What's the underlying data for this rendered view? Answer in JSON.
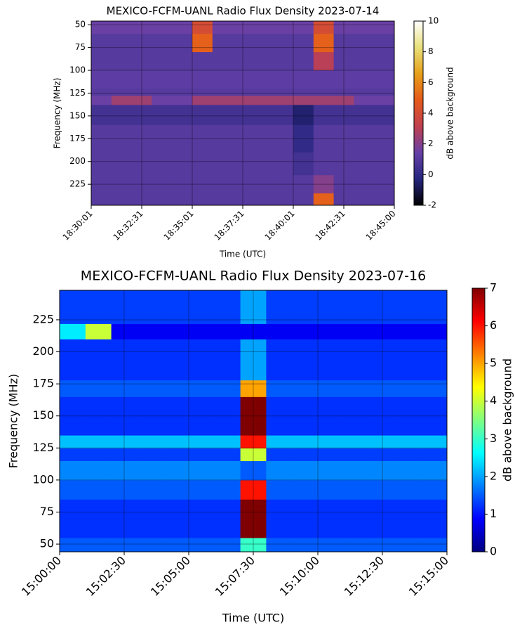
{
  "chart_data": [
    {
      "type": "spectrogram",
      "title": "MEXICO-FCFM-UANL Radio Flux Density 2023-07-14",
      "x_label": "Time (UTC)",
      "y_label": "Frequency (MHz)",
      "colorbar_label": "dB above background",
      "xticks": [
        "18:30:01",
        "18:32:31",
        "18:35:01",
        "18:37:31",
        "18:40:01",
        "18:42:31",
        "18:45:00"
      ],
      "ylim": [
        46,
        248
      ],
      "y_inverted": true,
      "yticks": [
        50,
        75,
        100,
        125,
        150,
        175,
        200,
        225
      ],
      "clim": [
        -2,
        10
      ],
      "cticks": [
        -2,
        0,
        2,
        4,
        6,
        8,
        10
      ],
      "grid": true,
      "colormap": [
        "#000000",
        "#26267f",
        "#6640a8",
        "#c0404f",
        "#e55a1a",
        "#e6a01a",
        "#e8df7a",
        "#ffffff"
      ],
      "y_bins": [
        46,
        60,
        80,
        100,
        120,
        128,
        138,
        160,
        190,
        215,
        235,
        248
      ],
      "z": [
        [
          1.5,
          1.5,
          1.5,
          1.5,
          1.5,
          4,
          1.5,
          1.5,
          1.5,
          1.5,
          1.5,
          4,
          1.5,
          1.5,
          1.5
        ],
        [
          1,
          1,
          1,
          1,
          1,
          5,
          1,
          1,
          1,
          1,
          1,
          5,
          1,
          1,
          1
        ],
        [
          1,
          1,
          1,
          1,
          1,
          1,
          1,
          1,
          1,
          1,
          1,
          3,
          1,
          1,
          1
        ],
        [
          1.2,
          1.2,
          1.2,
          1.2,
          1.2,
          1.2,
          1.2,
          1.2,
          1.2,
          1.2,
          1.2,
          1.2,
          1.2,
          1.2,
          1.2
        ],
        [
          1,
          1,
          1,
          1,
          1,
          1,
          1,
          1,
          1,
          1,
          1,
          1,
          1,
          1,
          1
        ],
        [
          1.5,
          2.5,
          2.5,
          1.5,
          1.5,
          2.5,
          2.5,
          2.5,
          2.5,
          2.5,
          2.5,
          2.5,
          2.5,
          1.5,
          1.5
        ],
        [
          0.5,
          0.5,
          0.5,
          0.5,
          0.5,
          0.5,
          0.5,
          0.5,
          0.5,
          0.5,
          -0.5,
          0.5,
          0.5,
          0.5,
          0.5
        ],
        [
          1,
          1,
          1,
          1,
          1,
          1,
          1,
          1,
          1,
          1,
          0,
          1,
          1,
          1,
          1
        ],
        [
          1,
          1,
          1,
          1,
          1,
          1,
          1,
          1,
          1,
          1,
          0.5,
          1,
          1,
          1,
          1
        ],
        [
          1,
          1,
          1,
          1,
          1,
          1,
          1,
          1,
          1,
          1,
          1,
          2,
          1,
          1,
          1
        ],
        [
          1,
          1,
          1,
          1,
          1,
          1,
          1,
          1,
          1,
          1,
          1,
          5,
          1,
          1,
          1
        ]
      ]
    },
    {
      "type": "spectrogram",
      "title": "MEXICO-FCFM-UANL Radio Flux Density 2023-07-16",
      "x_label": "Time (UTC)",
      "y_label": "Frequency (MHz)",
      "colorbar_label": "dB above background",
      "xticks": [
        "15:00:00",
        "15:02:30",
        "15:05:00",
        "15:07:30",
        "15:10:00",
        "15:12:30",
        "15:15:00"
      ],
      "ylim": [
        44,
        248
      ],
      "y_inverted": false,
      "yticks": [
        50,
        75,
        100,
        125,
        150,
        175,
        200,
        225
      ],
      "clim": [
        0,
        7
      ],
      "cticks": [
        0,
        1,
        2,
        3,
        4,
        5,
        6,
        7
      ],
      "grid": true,
      "colormap": [
        "#00007f",
        "#0000ff",
        "#0080ff",
        "#00ffff",
        "#80ff80",
        "#ffff00",
        "#ff8000",
        "#ff0000",
        "#7f0000"
      ],
      "y_bins": [
        44,
        55,
        70,
        85,
        100,
        115,
        125,
        135,
        150,
        165,
        178,
        210,
        222,
        248
      ],
      "z": [
        [
          1.5,
          1.5,
          1.5,
          1.5,
          1.5,
          1.5,
          1.5,
          3,
          1.5,
          1.5,
          1.5,
          1.5,
          1.5,
          1.5,
          1.5
        ],
        [
          1.2,
          1.2,
          1.2,
          1.2,
          1.2,
          1.2,
          1.2,
          7,
          1.2,
          1.2,
          1.2,
          1.2,
          1.2,
          1.2,
          1.2
        ],
        [
          1.2,
          1.2,
          1.2,
          1.2,
          1.2,
          1.2,
          1.2,
          7,
          1.2,
          1.2,
          1.2,
          1.2,
          1.2,
          1.2,
          1.2
        ],
        [
          1.5,
          1.5,
          1.5,
          1.5,
          1.5,
          1.5,
          1.5,
          6,
          1.5,
          1.5,
          1.5,
          1.5,
          1.5,
          1.5,
          1.5
        ],
        [
          1.8,
          1.8,
          1.8,
          1.8,
          1.8,
          1.8,
          1.8,
          1.5,
          1.8,
          1.8,
          1.8,
          1.8,
          1.8,
          1.8,
          1.8
        ],
        [
          1.3,
          1.3,
          1.3,
          1.3,
          1.3,
          1.3,
          1.3,
          4,
          1.3,
          1.3,
          1.3,
          1.3,
          1.3,
          1.3,
          1.3
        ],
        [
          2.2,
          2.2,
          2.2,
          2.2,
          2.2,
          2.2,
          2.2,
          6,
          2.2,
          2.2,
          2.2,
          2.2,
          2.2,
          2.2,
          2.2
        ],
        [
          1.2,
          1.2,
          1.2,
          1.2,
          1.2,
          1.2,
          1.2,
          7,
          1.2,
          1.2,
          1.2,
          1.2,
          1.2,
          1.2,
          1.2
        ],
        [
          1.2,
          1.2,
          1.2,
          1.2,
          1.2,
          1.2,
          1.2,
          7,
          1.2,
          1.2,
          1.2,
          1.2,
          1.2,
          1.2,
          1.2
        ],
        [
          1.5,
          1.5,
          1.5,
          1.5,
          1.5,
          1.5,
          1.5,
          5,
          1.5,
          1.5,
          1.5,
          1.5,
          1.5,
          1.5,
          1.5
        ],
        [
          1.2,
          1.2,
          1.2,
          1.2,
          1.2,
          1.2,
          1.2,
          2,
          1.2,
          1.2,
          1.2,
          1.2,
          1.2,
          1.2,
          1.2
        ],
        [
          2.5,
          4,
          0.8,
          0.8,
          0.8,
          0.8,
          0.8,
          0.8,
          0.8,
          0.8,
          0.8,
          0.8,
          0.8,
          0.8,
          0.8
        ],
        [
          1.3,
          1.3,
          1.3,
          1.3,
          1.3,
          1.3,
          1.3,
          2,
          1.3,
          1.3,
          1.3,
          1.3,
          1.3,
          1.3,
          1.3
        ]
      ]
    }
  ]
}
